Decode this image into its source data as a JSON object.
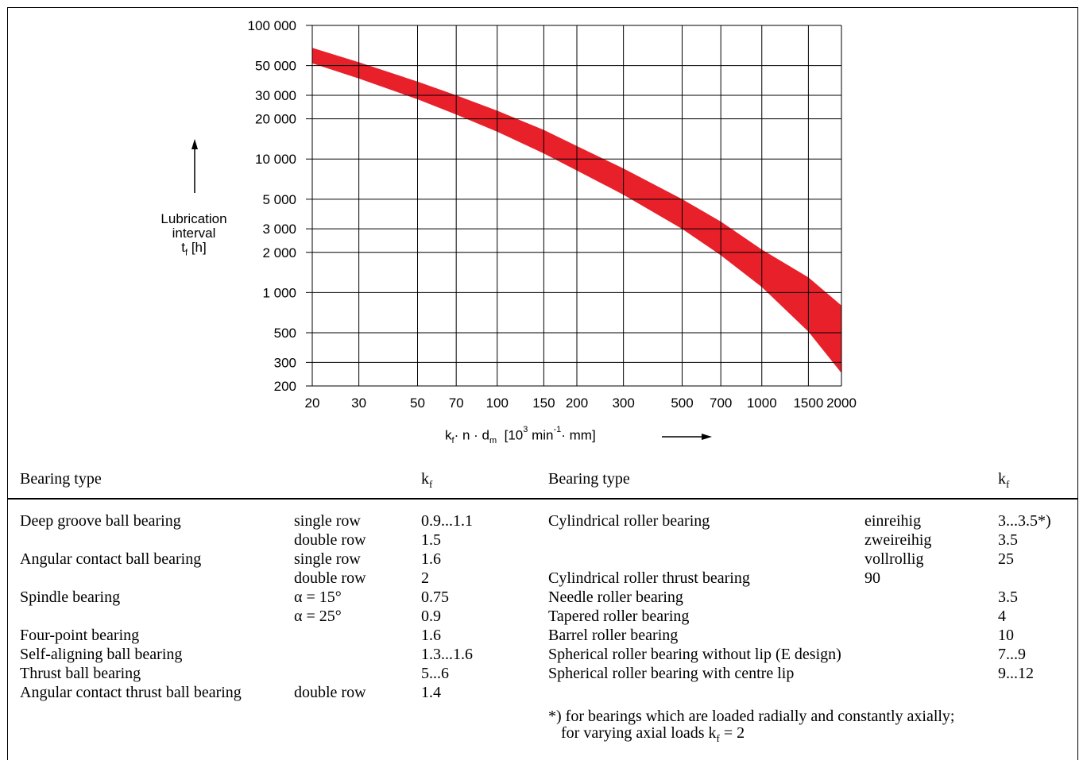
{
  "chart_data": {
    "type": "area",
    "x_scale": "log",
    "y_scale": "log",
    "xlim": [
      20,
      2000
    ],
    "ylim": [
      200,
      100000
    ],
    "x_ticks": [
      "20",
      "30",
      "50",
      "70",
      "100",
      "150",
      "200",
      "300",
      "500",
      "700",
      "1000",
      "1500",
      "2000"
    ],
    "y_ticks": [
      "100 000",
      "50 000",
      "30 000",
      "20 000",
      "10 000",
      "5 000",
      "3 000",
      "2 000",
      "1 000",
      "500",
      "300",
      "200"
    ],
    "grid": true,
    "band_color": "#e8202a",
    "x_values": [
      20,
      30,
      50,
      70,
      100,
      150,
      200,
      300,
      500,
      700,
      1000,
      1500,
      2000
    ],
    "upper": [
      68000,
      53000,
      38000,
      30000,
      23000,
      16500,
      12500,
      8500,
      5000,
      3400,
      2100,
      1300,
      800
    ],
    "lower": [
      52000,
      40000,
      28000,
      21500,
      16000,
      11000,
      8200,
      5400,
      3000,
      1900,
      1100,
      510,
      250
    ],
    "ylabel_lines": [
      "Lubrication",
      "interval"
    ],
    "ylabel_sym": "t",
    "ylabel_sub": "f",
    "ylabel_unit": "[h]",
    "xlabel_k": "k",
    "xlabel_sub_f": "f",
    "xlabel_mid": "· n · d",
    "xlabel_sub_m": "m",
    "xlabel_unit_a": "[10",
    "xlabel_unit_sup": "3",
    "xlabel_unit_b": " min",
    "xlabel_unit_sup2": "-1",
    "xlabel_unit_c": "· mm]"
  },
  "table": {
    "header_left": "Bearing type",
    "header_kf": "k",
    "header_kf_sub": "f",
    "header_right": "Bearing type",
    "left_rows": [
      {
        "type": "Deep groove ball bearing",
        "variant": "single row",
        "kf": "0.9...1.1"
      },
      {
        "type": "",
        "variant": "double row",
        "kf": "1.5"
      },
      {
        "type": "Angular contact ball bearing",
        "variant": "single row",
        "kf": "1.6"
      },
      {
        "type": "",
        "variant": "double row",
        "kf": "2"
      },
      {
        "type": "Spindle bearing",
        "variant": "α = 15°",
        "kf": "0.75"
      },
      {
        "type": "",
        "variant": "α = 25°",
        "kf": "0.9"
      },
      {
        "type": "Four-point bearing",
        "variant": "",
        "kf": "1.6"
      },
      {
        "type": "Self-aligning ball bearing",
        "variant": "",
        "kf": "1.3...1.6"
      },
      {
        "type": "Thrust ball bearing",
        "variant": "",
        "kf": "5...6"
      },
      {
        "type": "Angular contact thrust ball bearing",
        "variant": "double row",
        "kf": "1.4"
      }
    ],
    "right_rows": [
      {
        "type": "Cylindrical roller bearing",
        "variant": "einreihig",
        "kf": "3...3.5*)"
      },
      {
        "type": "",
        "variant": "zweireihig",
        "kf": "3.5"
      },
      {
        "type": "",
        "variant": "vollrollig",
        "kf": "25"
      },
      {
        "type": "Cylindrical roller thrust bearing",
        "variant": "90",
        "kf": ""
      },
      {
        "type": "Needle roller bearing",
        "variant": "",
        "kf": "3.5"
      },
      {
        "type": "Tapered roller bearing",
        "variant": "",
        "kf": "4"
      },
      {
        "type": "Barrel roller bearing",
        "variant": "",
        "kf": "10"
      },
      {
        "type": "Spherical roller bearing without lip (E design)",
        "variant": "",
        "kf": "7...9"
      },
      {
        "type": "Spherical roller bearing with centre lip",
        "variant": "",
        "kf": "9...12"
      }
    ],
    "note_line1": "*) for bearings which are loaded radially and constantly axially;",
    "note_line2a": "for varying axial loads k",
    "note_line2_sub": "f",
    "note_line2b": " = 2"
  }
}
